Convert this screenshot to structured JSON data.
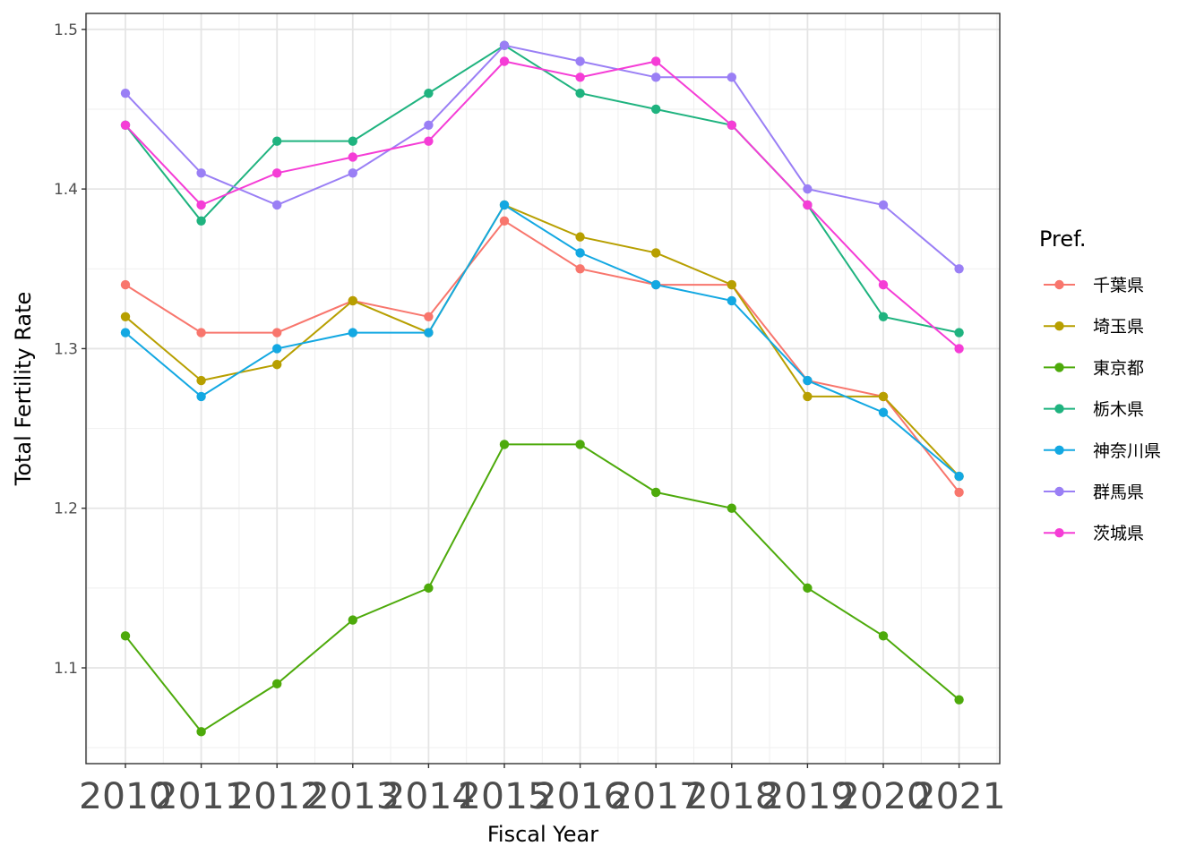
{
  "chart_data": {
    "type": "line",
    "xlabel": "Fiscal Year",
    "ylabel": "Total Fertility Rate",
    "categories": [
      "2010",
      "2011",
      "2012",
      "2013",
      "2014",
      "2015",
      "2016",
      "2017",
      "2018",
      "2019",
      "2020",
      "2021"
    ],
    "ylim": [
      1.04,
      1.51
    ],
    "yticks": [
      "1.1",
      "1.2",
      "1.3",
      "1.4",
      "1.5"
    ],
    "grid": true,
    "legend": {
      "title": "Pref.",
      "position": "right"
    },
    "series": [
      {
        "name": "千葉県",
        "color": "#F8766D",
        "values": [
          1.34,
          1.31,
          1.31,
          1.33,
          1.32,
          1.38,
          1.35,
          1.34,
          1.34,
          1.28,
          1.27,
          1.21
        ]
      },
      {
        "name": "埼玉県",
        "color": "#B79F00",
        "values": [
          1.32,
          1.28,
          1.29,
          1.33,
          1.31,
          1.39,
          1.37,
          1.36,
          1.34,
          1.27,
          1.27,
          1.22
        ]
      },
      {
        "name": "東京都",
        "color": "#4DAA0B",
        "values": [
          1.12,
          1.06,
          1.09,
          1.13,
          1.15,
          1.24,
          1.24,
          1.21,
          1.2,
          1.15,
          1.12,
          1.08
        ]
      },
      {
        "name": "栃木県",
        "color": "#1FB37F",
        "values": [
          1.44,
          1.38,
          1.43,
          1.43,
          1.46,
          1.49,
          1.46,
          1.45,
          1.44,
          1.39,
          1.32,
          1.31
        ]
      },
      {
        "name": "神奈川県",
        "color": "#13A8E2",
        "values": [
          1.31,
          1.27,
          1.3,
          1.31,
          1.31,
          1.39,
          1.36,
          1.34,
          1.33,
          1.28,
          1.26,
          1.22
        ]
      },
      {
        "name": "群馬県",
        "color": "#9A7FF5",
        "values": [
          1.46,
          1.41,
          1.39,
          1.41,
          1.44,
          1.49,
          1.48,
          1.47,
          1.47,
          1.4,
          1.39,
          1.35
        ]
      },
      {
        "name": "茨城県",
        "color": "#F53DD6",
        "values": [
          1.44,
          1.39,
          1.41,
          1.42,
          1.43,
          1.48,
          1.47,
          1.48,
          1.44,
          1.39,
          1.34,
          1.3
        ]
      }
    ]
  }
}
